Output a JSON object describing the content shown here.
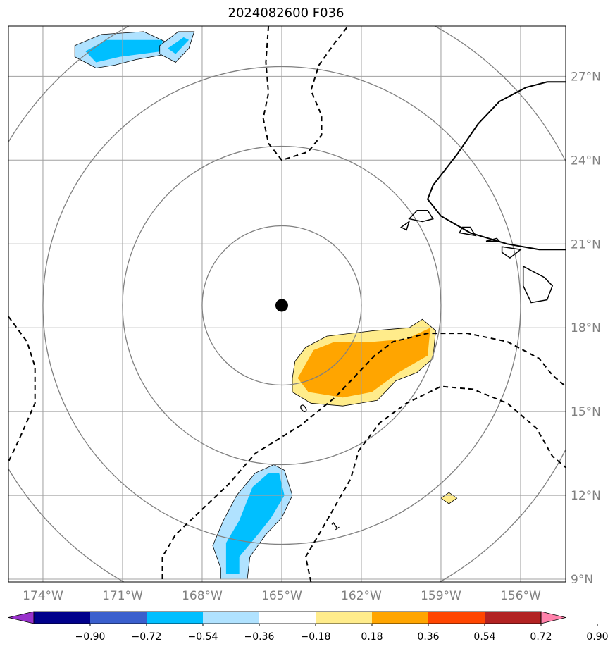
{
  "chart_data": {
    "type": "map-contour",
    "title": "2024082600 F036",
    "projection": "plate-carree",
    "lon_range": [
      -175.3,
      -154.3
    ],
    "lat_range": [
      8.9,
      28.8
    ],
    "lon_ticks": [
      -174,
      -171,
      -168,
      -165,
      -162,
      -159,
      -156
    ],
    "lon_tick_labels": [
      "174°W",
      "171°W",
      "168°W",
      "165°W",
      "162°W",
      "159°W",
      "156°W"
    ],
    "lat_ticks": [
      9,
      12,
      15,
      18,
      21,
      24,
      27
    ],
    "lat_tick_labels": [
      "9°N",
      "12°N",
      "15°N",
      "18°N",
      "21°N",
      "24°N",
      "27°N"
    ],
    "center_marker": {
      "lon": -165.0,
      "lat": 18.8
    },
    "range_rings_deg": [
      3,
      6,
      9,
      12
    ],
    "contour_labels": [
      "0",
      "1"
    ],
    "colorbar": {
      "colors": [
        "#9932CC",
        "#00008B",
        "#3A5FCD",
        "#00BFFF",
        "#B0E2FF",
        "#FFFFFF",
        "#FFEC8B",
        "#FFA500",
        "#FF4500",
        "#B22222",
        "#FF82AB"
      ],
      "ticks": [
        "−0.90",
        "−0.72",
        "−0.54",
        "−0.36",
        "−0.18",
        "0.18",
        "0.36",
        "0.54",
        "0.72",
        "0.90"
      ],
      "extend": "both"
    },
    "filled_regions": [
      {
        "name": "blue-northwest",
        "level": "-0.54..-0.36",
        "outer": [
          [
            -172.8,
            28.1
          ],
          [
            -171.8,
            28.5
          ],
          [
            -170.2,
            28.6
          ],
          [
            -169.3,
            28.2
          ],
          [
            -169.3,
            27.8
          ],
          [
            -170.5,
            27.6
          ],
          [
            -171.3,
            27.4
          ],
          [
            -172.0,
            27.3
          ],
          [
            -172.8,
            27.7
          ]
        ],
        "inner": [
          [
            -172.4,
            27.9
          ],
          [
            -171.6,
            28.3
          ],
          [
            -169.5,
            28.3
          ],
          [
            -169.5,
            27.9
          ],
          [
            -171.1,
            27.7
          ],
          [
            -172.0,
            27.5
          ]
        ]
      },
      {
        "name": "blue-north",
        "level": "-0.54..-0.36",
        "outer": [
          [
            -169.6,
            28.1
          ],
          [
            -168.9,
            28.6
          ],
          [
            -168.3,
            28.6
          ],
          [
            -168.5,
            28.0
          ],
          [
            -169.0,
            27.5
          ],
          [
            -169.6,
            27.8
          ]
        ],
        "inner": [
          [
            -169.3,
            28.0
          ],
          [
            -168.7,
            28.4
          ],
          [
            -168.5,
            28.3
          ],
          [
            -169.0,
            27.8
          ]
        ]
      },
      {
        "name": "orange-east",
        "level": "0.36..0.54",
        "outer": [
          [
            -164.6,
            16.2
          ],
          [
            -164.5,
            16.8
          ],
          [
            -164.1,
            17.3
          ],
          [
            -163.3,
            17.7
          ],
          [
            -161.5,
            17.9
          ],
          [
            -160.2,
            18.0
          ],
          [
            -159.7,
            18.3
          ],
          [
            -159.2,
            17.9
          ],
          [
            -159.3,
            16.9
          ],
          [
            -159.9,
            16.4
          ],
          [
            -160.7,
            16.1
          ],
          [
            -161.4,
            15.4
          ],
          [
            -162.7,
            15.2
          ],
          [
            -163.9,
            15.3
          ],
          [
            -164.6,
            15.7
          ]
        ],
        "inner": [
          [
            -164.4,
            16.2
          ],
          [
            -163.8,
            17.2
          ],
          [
            -163.0,
            17.5
          ],
          [
            -161.5,
            17.5
          ],
          [
            -160.3,
            17.6
          ],
          [
            -159.4,
            18.0
          ],
          [
            -159.5,
            17.0
          ],
          [
            -160.6,
            16.4
          ],
          [
            -161.6,
            15.7
          ],
          [
            -162.7,
            15.5
          ],
          [
            -164.0,
            15.7
          ]
        ]
      },
      {
        "name": "blue-south",
        "level": "-0.54..-0.36",
        "outer": [
          [
            -167.3,
            9.4
          ],
          [
            -167.6,
            10.2
          ],
          [
            -167.2,
            11.1
          ],
          [
            -166.7,
            12.0
          ],
          [
            -166.0,
            12.8
          ],
          [
            -165.3,
            13.1
          ],
          [
            -164.9,
            12.9
          ],
          [
            -164.6,
            12.0
          ],
          [
            -165.0,
            11.2
          ],
          [
            -165.6,
            10.6
          ],
          [
            -166.2,
            9.8
          ],
          [
            -166.3,
            9.0
          ],
          [
            -167.3,
            9.0
          ]
        ],
        "inner": [
          [
            -167.1,
            9.2
          ],
          [
            -167.1,
            10.3
          ],
          [
            -166.6,
            11.1
          ],
          [
            -166.1,
            12.3
          ],
          [
            -165.5,
            12.8
          ],
          [
            -165.1,
            12.8
          ],
          [
            -164.9,
            12.0
          ],
          [
            -165.4,
            11.2
          ],
          [
            -165.9,
            10.6
          ],
          [
            -166.6,
            9.8
          ],
          [
            -166.6,
            9.2
          ]
        ]
      },
      {
        "name": "yellow-small",
        "level": "0.18..0.36",
        "outer": [
          [
            -158.7,
            12.1
          ],
          [
            -158.4,
            11.9
          ],
          [
            -158.7,
            11.7
          ],
          [
            -159.0,
            11.9
          ]
        ],
        "inner": []
      }
    ],
    "dashed_contours": [
      [
        [
          -165.5,
          28.8
        ],
        [
          -165.6,
          27.5
        ],
        [
          -165.5,
          26.4
        ],
        [
          -165.7,
          25.5
        ],
        [
          -165.5,
          24.6
        ],
        [
          -165.0,
          24.0
        ],
        [
          -164.0,
          24.3
        ],
        [
          -163.5,
          24.9
        ],
        [
          -163.5,
          25.6
        ],
        [
          -163.9,
          26.5
        ],
        [
          -163.6,
          27.4
        ],
        [
          -163.0,
          28.2
        ],
        [
          -162.5,
          28.8
        ]
      ],
      [
        [
          -175.3,
          18.4
        ],
        [
          -174.6,
          17.5
        ],
        [
          -174.3,
          16.6
        ],
        [
          -174.3,
          15.3
        ],
        [
          -174.9,
          14.0
        ],
        [
          -175.3,
          13.2
        ]
      ],
      [
        [
          -169.5,
          9.0
        ],
        [
          -169.5,
          9.8
        ],
        [
          -169.0,
          10.6
        ],
        [
          -168.0,
          11.5
        ],
        [
          -167.0,
          12.4
        ],
        [
          -166.0,
          13.5
        ],
        [
          -164.3,
          14.5
        ],
        [
          -163.0,
          15.5
        ],
        [
          -162.2,
          16.3
        ],
        [
          -161.5,
          17.0
        ],
        [
          -160.8,
          17.5
        ],
        [
          -159.5,
          17.8
        ],
        [
          -158.0,
          17.8
        ],
        [
          -156.5,
          17.5
        ],
        [
          -155.3,
          16.9
        ],
        [
          -154.8,
          16.3
        ],
        [
          -154.3,
          15.9
        ]
      ],
      [
        [
          -163.9,
          8.9
        ],
        [
          -164.1,
          9.8
        ],
        [
          -163.6,
          10.6
        ],
        [
          -163.0,
          11.6
        ],
        [
          -162.4,
          12.6
        ],
        [
          -162.1,
          13.6
        ],
        [
          -161.3,
          14.6
        ],
        [
          -160.3,
          15.3
        ],
        [
          -159.0,
          15.9
        ],
        [
          -157.8,
          15.8
        ],
        [
          -156.5,
          15.3
        ],
        [
          -155.4,
          14.4
        ],
        [
          -154.8,
          13.4
        ],
        [
          -154.3,
          13.0
        ]
      ]
    ],
    "coastlines": [
      [
        [
          -154.3,
          26.8
        ],
        [
          -155.0,
          26.8
        ],
        [
          -155.8,
          26.6
        ],
        [
          -156.8,
          26.1
        ],
        [
          -157.6,
          25.3
        ],
        [
          -158.4,
          24.2
        ],
        [
          -159.3,
          23.1
        ],
        [
          -159.5,
          22.6
        ],
        [
          -159.0,
          22.0
        ],
        [
          -157.9,
          21.4
        ],
        [
          -156.5,
          21.0
        ],
        [
          -155.3,
          20.8
        ],
        [
          -154.3,
          20.8
        ]
      ],
      [
        [
          -160.2,
          21.9
        ],
        [
          -159.9,
          22.2
        ],
        [
          -159.5,
          22.2
        ],
        [
          -159.3,
          21.9
        ],
        [
          -159.7,
          21.8
        ]
      ],
      [
        [
          -160.5,
          21.6
        ],
        [
          -160.2,
          21.8
        ],
        [
          -160.3,
          21.5
        ]
      ],
      [
        [
          -158.3,
          21.4
        ],
        [
          -157.7,
          21.3
        ],
        [
          -157.9,
          21.6
        ],
        [
          -158.2,
          21.6
        ]
      ],
      [
        [
          -157.3,
          21.1
        ],
        [
          -156.8,
          21.1
        ],
        [
          -156.9,
          21.2
        ]
      ],
      [
        [
          -156.7,
          20.9
        ],
        [
          -156.0,
          20.8
        ],
        [
          -156.4,
          20.5
        ],
        [
          -156.7,
          20.7
        ]
      ],
      [
        [
          -155.9,
          20.2
        ],
        [
          -155.1,
          19.8
        ],
        [
          -154.8,
          19.5
        ],
        [
          -155.0,
          19.0
        ],
        [
          -155.6,
          18.9
        ],
        [
          -155.9,
          19.5
        ]
      ]
    ]
  }
}
